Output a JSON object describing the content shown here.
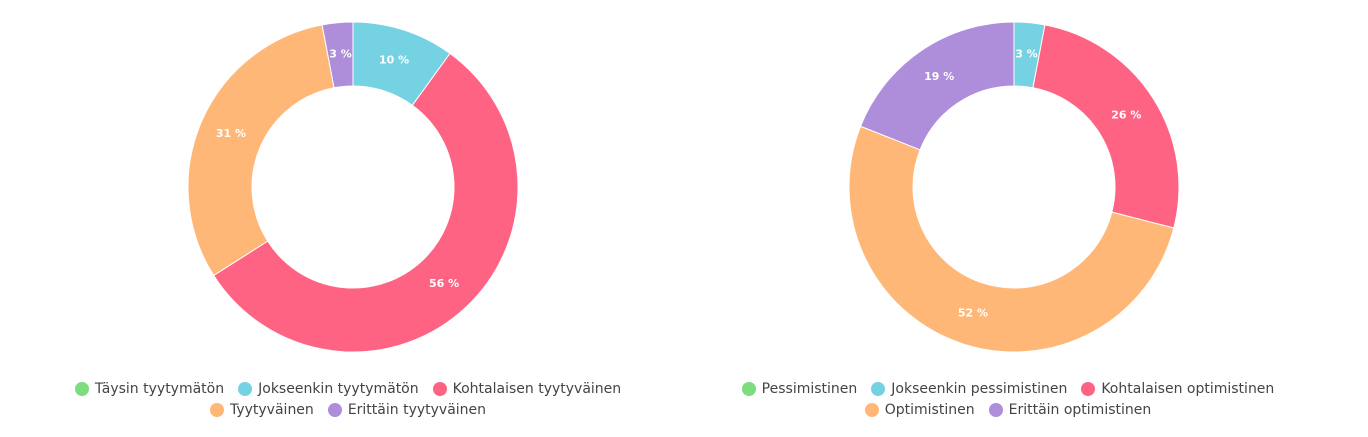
{
  "chart_data": [
    {
      "type": "donut",
      "categories": [
        "Täysin tyytymätön",
        "Jokseenkin tyytymätön",
        "Kohtalaisen tyytyväinen",
        "Tyytyväinen",
        "Erittäin tyytyväinen"
      ],
      "values": [
        0,
        10,
        56,
        31,
        3
      ],
      "value_labels": [
        null,
        "10 %",
        "56 %",
        "31 %",
        "3 %"
      ],
      "colors": [
        "#7ddc7d",
        "#74d2e2",
        "#ff6384",
        "#ffb778",
        "#ae8ddb"
      ]
    },
    {
      "type": "donut",
      "categories": [
        "Pessimistinen",
        "Jokseenkin pessimistinen",
        "Kohtalaisen optimistinen",
        "Optimistinen",
        "Erittäin optimistinen"
      ],
      "values": [
        0,
        3,
        26,
        52,
        19
      ],
      "value_labels": [
        null,
        "3 %",
        "26 %",
        "52 %",
        "19 %"
      ],
      "colors": [
        "#7ddc7d",
        "#74d2e2",
        "#ff6384",
        "#ffb778",
        "#ae8ddb"
      ]
    }
  ]
}
